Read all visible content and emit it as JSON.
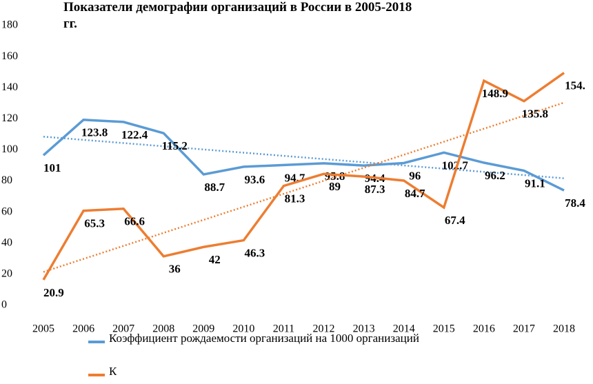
{
  "chart_data": {
    "type": "line",
    "title": "Показатели демографии организаций в России в 2005-2018 гг.",
    "categories": [
      "2005",
      "2006",
      "2007",
      "2008",
      "2009",
      "2010",
      "2011",
      "2012",
      "2013",
      "2014",
      "2015",
      "2016",
      "2017",
      "2018"
    ],
    "series": [
      {
        "name": "Коэффициент рождаемости организаций на 1000 организаций",
        "color": "#5b9bd5",
        "values": [
          101,
          123.8,
          122.4,
          115.2,
          88.7,
          93.6,
          94.7,
          95.8,
          94.4,
          96,
          102.7,
          96.2,
          91.1,
          78.4
        ]
      },
      {
        "name": "К",
        "color": "#ed7d31",
        "values": [
          20.9,
          65.3,
          66.6,
          36,
          42,
          46.3,
          81.3,
          89,
          87.3,
          84.7,
          67.4,
          148.9,
          135.8,
          154
        ],
        "value_labels": [
          "20.9",
          "65.3",
          "66.6",
          "36",
          "42",
          "46.3",
          "81.3",
          "89",
          "87.3",
          "84.7",
          "67.4",
          "148.9",
          "135.8",
          "154."
        ]
      }
    ],
    "ylim": [
      0,
      180
    ],
    "yticks": [
      0,
      20,
      40,
      60,
      80,
      100,
      120,
      140,
      160,
      180
    ],
    "trendline": true,
    "grid": false
  }
}
